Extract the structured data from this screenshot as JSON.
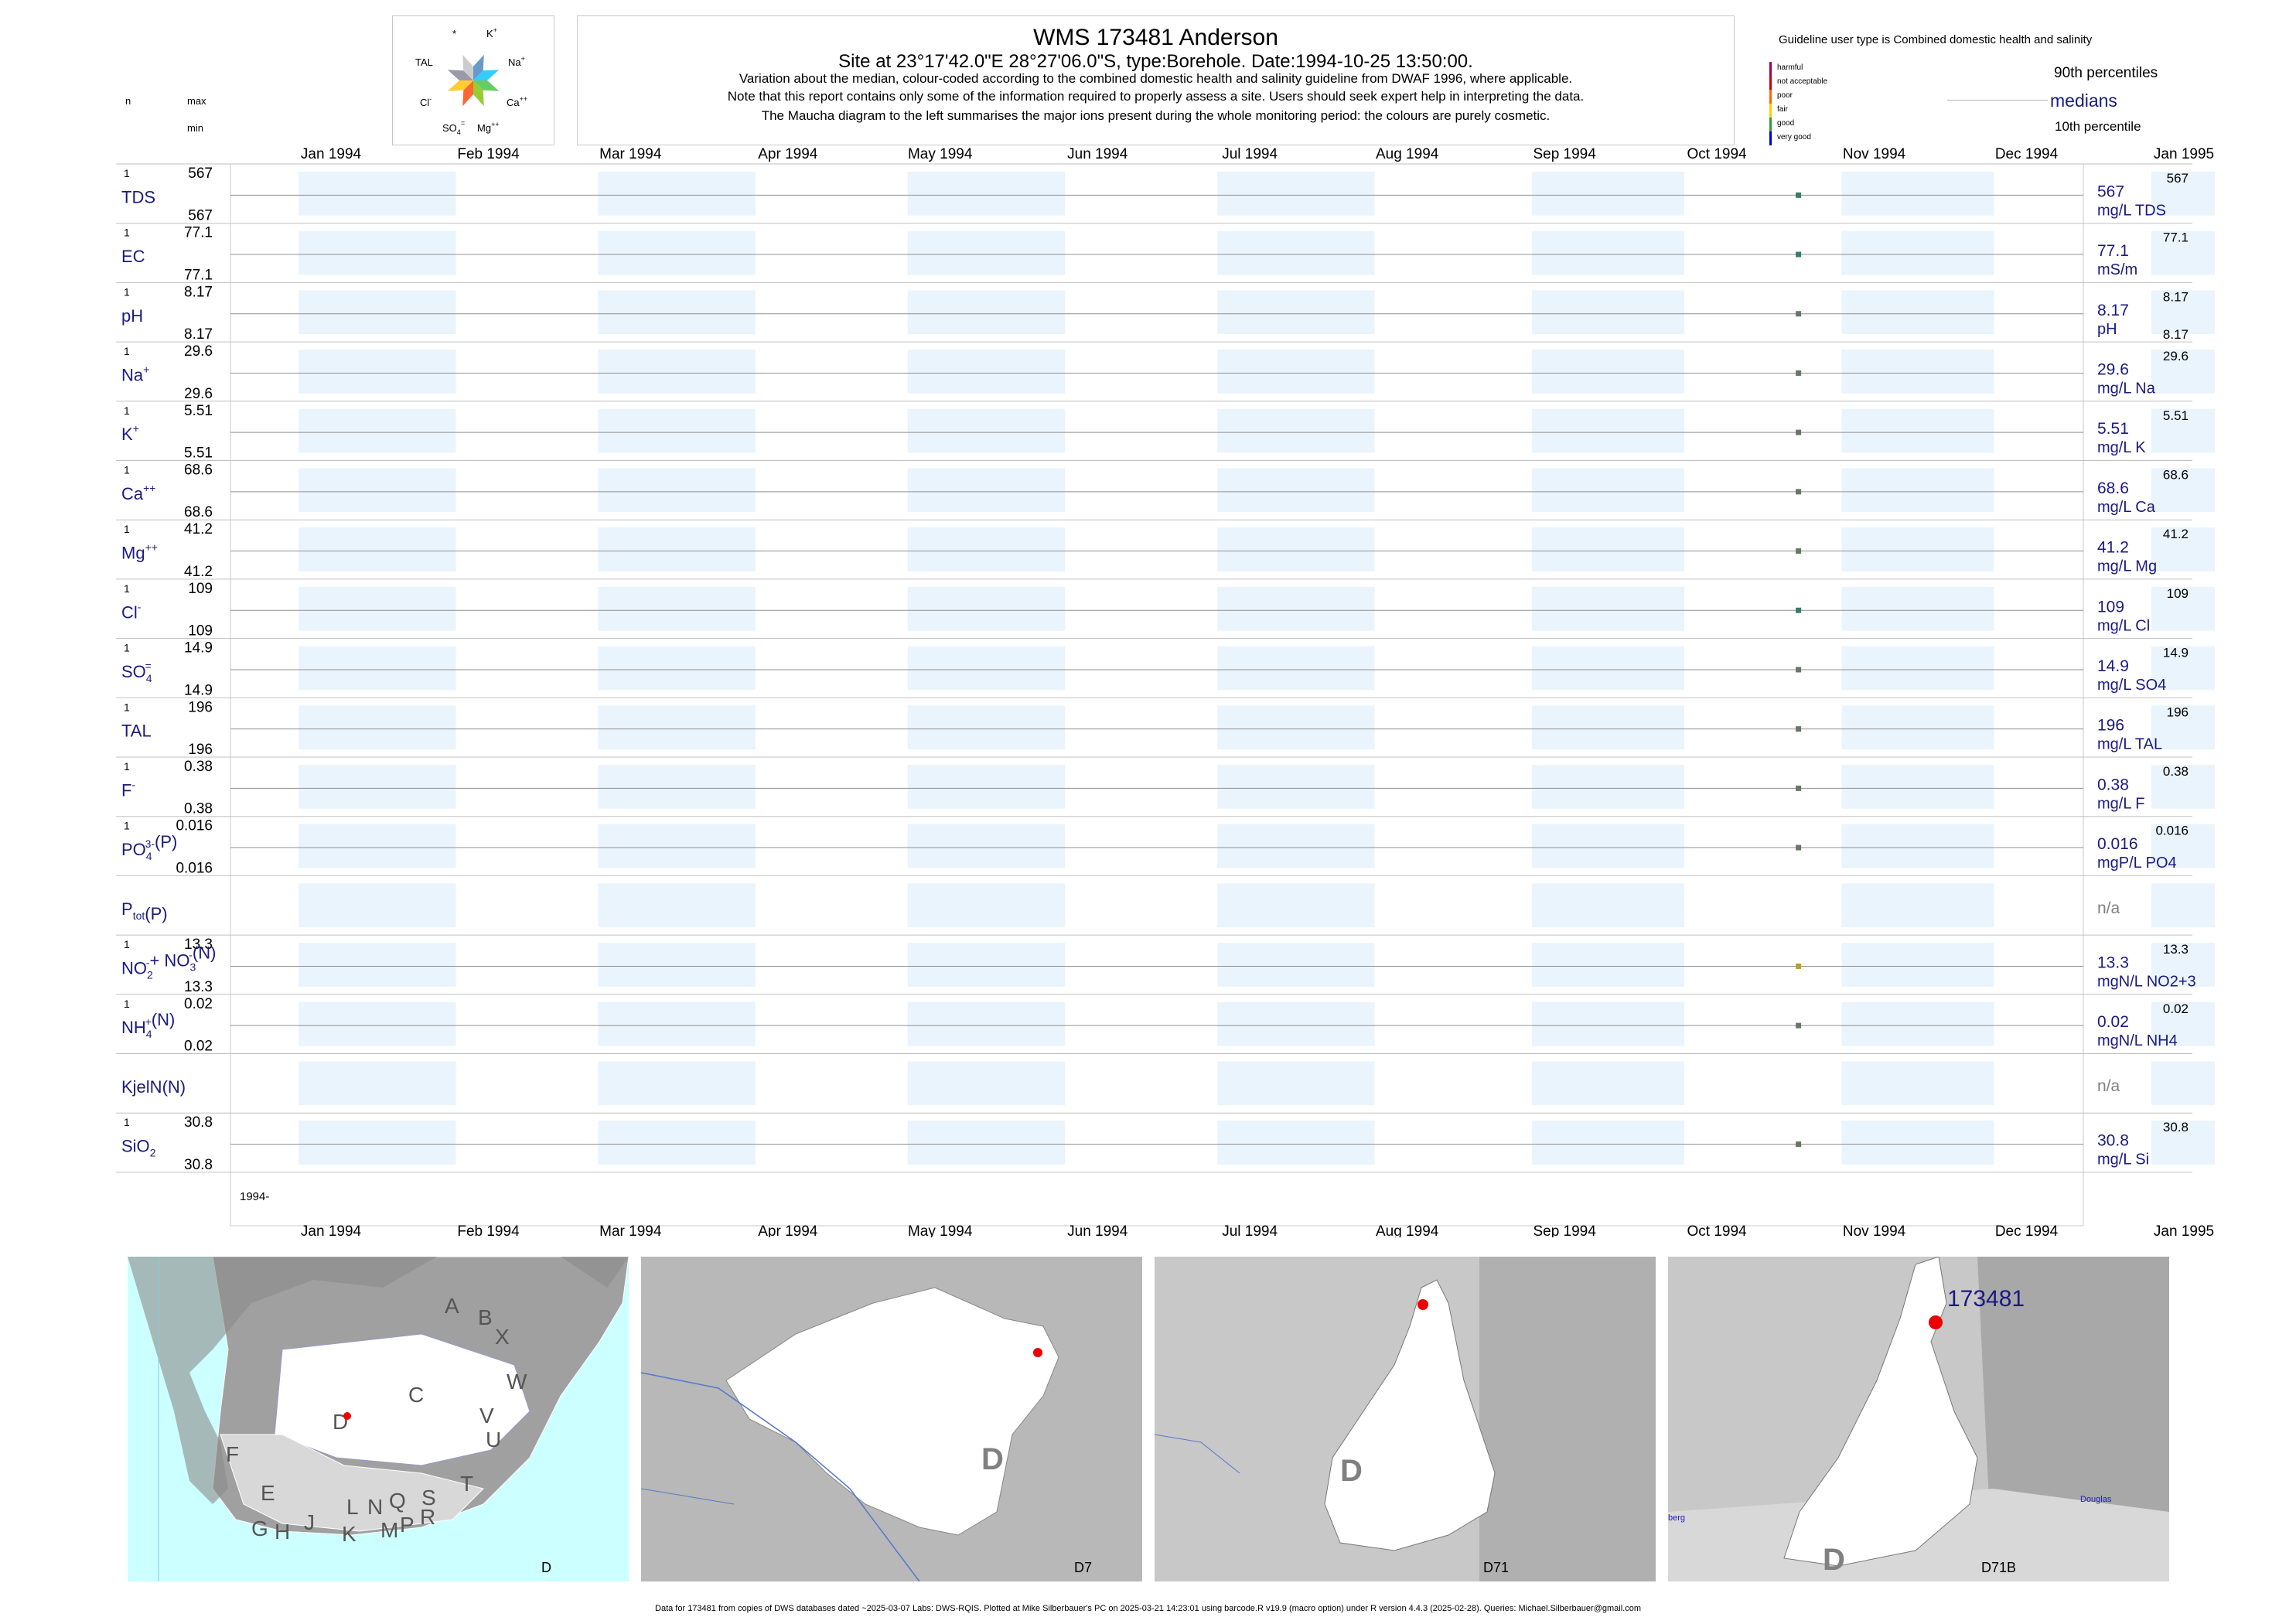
{
  "header": {
    "title": "WMS 173481  Anderson",
    "site_line": "Site at 23°17'42.0\"E 28°27'06.0\"S, type:Borehole. Date:1994-10-25 13:50:00.",
    "notes": [
      "Variation about the median,  colour-coded according to the combined domestic health and salinity guideline from DWAF 1996, where applicable.",
      "Note that this report contains only some of the information required to properly assess a site. Users should seek expert help in interpreting the data.",
      "The Maucha diagram to the left summarises the major ions present during the whole monitoring period: the colours are purely cosmetic."
    ]
  },
  "left_header": {
    "n": "n",
    "max": "max",
    "min": "min"
  },
  "maucha": {
    "labels": {
      "star": "*",
      "k": "K",
      "k_sup": "+",
      "tal": "TAL",
      "na": "Na",
      "na_sup": "+",
      "cl": "Cl",
      "cl_sup": "-",
      "ca": "Ca",
      "ca_sup": "++",
      "so4": "SO",
      "so4_sub": "4",
      "so4_sup": "=",
      "mg": "Mg",
      "mg_sup": "++"
    },
    "colors": [
      "#6699cc",
      "#33ccff",
      "#66cc66",
      "#99cc33",
      "#ff6633",
      "#ffcc33",
      "#9999aa",
      "#cccccc"
    ]
  },
  "legend": {
    "guideline_title": "Guideline user type is Combined domestic health and salinity",
    "classes": [
      {
        "label": "harmful",
        "color": "#990066"
      },
      {
        "label": "not acceptable",
        "color": "#cc0000"
      },
      {
        "label": "poor",
        "color": "#ff6600"
      },
      {
        "label": "fair",
        "color": "#ffcc00"
      },
      {
        "label": "good",
        "color": "#339933"
      },
      {
        "label": "very good",
        "color": "#0000cc"
      }
    ],
    "p90": "90th percentiles",
    "medians": "medians",
    "p10": "10th percentile"
  },
  "axis": {
    "months": [
      "Jan 1994",
      "Feb 1994",
      "Mar 1994",
      "Apr 1994",
      "May 1994",
      "Jun 1994",
      "Jul 1994",
      "Aug 1994",
      "Sep 1994",
      "Oct 1994",
      "Nov 1994",
      "Dec 1994",
      "Jan 1995"
    ],
    "year_label": "1994-"
  },
  "chart_data": {
    "type": "scatter",
    "x_range": [
      "1994-01-01",
      "1995-01-01"
    ],
    "sample_date": "1994-10-25",
    "series": [
      {
        "label": "TDS",
        "n": "1",
        "max": "567",
        "min": "567",
        "value": 567,
        "right_value": "567",
        "right_unit": "mg/L TDS",
        "p90": "567",
        "p10": "",
        "color": "#3a7a6a"
      },
      {
        "label": "EC",
        "n": "1",
        "max": "77.1",
        "min": "77.1",
        "value": 77.1,
        "right_value": "77.1",
        "right_unit": "mS/m",
        "p90": "77.1",
        "p10": "",
        "color": "#3a7a6a"
      },
      {
        "label": "pH",
        "n": "1",
        "max": "8.17",
        "min": "8.17",
        "value": 8.17,
        "right_value": "8.17",
        "right_unit": "pH",
        "p90": "8.17",
        "p10": "8.17",
        "color": "#667766"
      },
      {
        "label": "Na",
        "sup": "+",
        "n": "1",
        "max": "29.6",
        "min": "29.6",
        "value": 29.6,
        "right_value": "29.6",
        "right_unit": "mg/L Na",
        "p90": "29.6",
        "p10": "",
        "color": "#667766"
      },
      {
        "label": "K",
        "sup": "+",
        "n": "1",
        "max": "5.51",
        "min": "5.51",
        "value": 5.51,
        "right_value": "5.51",
        "right_unit": "mg/L K",
        "p90": "5.51",
        "p10": "",
        "color": "#667766"
      },
      {
        "label": "Ca",
        "sup": "++",
        "n": "1",
        "max": "68.6",
        "min": "68.6",
        "value": 68.6,
        "right_value": "68.6",
        "right_unit": "mg/L Ca",
        "p90": "68.6",
        "p10": "",
        "color": "#667766"
      },
      {
        "label": "Mg",
        "sup": "++",
        "n": "1",
        "max": "41.2",
        "min": "41.2",
        "value": 41.2,
        "right_value": "41.2",
        "right_unit": "mg/L Mg",
        "p90": "41.2",
        "p10": "",
        "color": "#667766"
      },
      {
        "label": "Cl",
        "sup": "-",
        "n": "1",
        "max": "109",
        "min": "109",
        "value": 109,
        "right_value": "109",
        "right_unit": "mg/L Cl",
        "p90": "109",
        "p10": "",
        "color": "#3a7a6a"
      },
      {
        "label": "SO",
        "sub": "4",
        "sup": "=",
        "n": "1",
        "max": "14.9",
        "min": "14.9",
        "value": 14.9,
        "right_value": "14.9",
        "right_unit": "mg/L SO4",
        "p90": "14.9",
        "p10": "",
        "color": "#667766"
      },
      {
        "label": "TAL",
        "n": "1",
        "max": "196",
        "min": "196",
        "value": 196,
        "right_value": "196",
        "right_unit": "mg/L TAL",
        "p90": "196",
        "p10": "",
        "color": "#667766"
      },
      {
        "label": "F",
        "sup": "-",
        "n": "1",
        "max": "0.38",
        "min": "0.38",
        "value": 0.38,
        "right_value": "0.38",
        "right_unit": "mg/L F",
        "p90": "0.38",
        "p10": "",
        "color": "#667766"
      },
      {
        "label": "PO",
        "sub": "4",
        "sup": "3-",
        "tail": "(P)",
        "n": "1",
        "max": "0.016",
        "min": "0.016",
        "value": 0.016,
        "right_value": "0.016",
        "right_unit": "mgP/L PO4",
        "p90": "0.016",
        "p10": "",
        "color": "#667766"
      },
      {
        "label": "P",
        "sub": "tot",
        "tail": "(P)",
        "n": "",
        "max": "",
        "min": "",
        "value": null,
        "right_value": "n/a",
        "right_unit": "",
        "p90": "",
        "p10": "",
        "color": "#808080"
      },
      {
        "label": "NO",
        "sub": "2",
        "sup": "-",
        "tail": "+ NO",
        "sub2": "3",
        "sup2": "-",
        "tail2": "(N)",
        "n": "1",
        "max": "13.3",
        "min": "13.3",
        "value": 13.3,
        "right_value": "13.3",
        "right_unit": "mgN/L NO2+3",
        "p90": "13.3",
        "p10": "",
        "color": "#b8a030"
      },
      {
        "label": "NH",
        "sub": "4",
        "sup": "+",
        "tail": "(N)",
        "n": "1",
        "max": "0.02",
        "min": "0.02",
        "value": 0.02,
        "right_value": "0.02",
        "right_unit": "mgN/L NH4",
        "p90": "0.02",
        "p10": "",
        "color": "#667766"
      },
      {
        "label": "KjelN(N)",
        "n": "",
        "max": "",
        "min": "",
        "value": null,
        "right_value": "n/a",
        "right_unit": "",
        "p90": "",
        "p10": "",
        "color": "#808080"
      },
      {
        "label": "SiO",
        "sub": "2",
        "n": "1",
        "max": "30.8",
        "min": "30.8",
        "value": 30.8,
        "right_value": "30.8",
        "right_unit": "mg/L Si",
        "p90": "30.8",
        "p10": "",
        "color": "#667766"
      }
    ]
  },
  "maps": [
    {
      "caption": "D",
      "letters": [
        "A",
        "B",
        "X",
        "W",
        "C",
        "V",
        "U",
        "T",
        "D",
        "F",
        "E",
        "G",
        "H",
        "J",
        "K",
        "L",
        "M",
        "N",
        "P",
        "Q",
        "R",
        "S"
      ]
    },
    {
      "caption": "D7",
      "letters": [
        "D"
      ]
    },
    {
      "caption": "D71",
      "letters": [
        "D"
      ]
    },
    {
      "caption": "D71B",
      "letters": [
        "D"
      ],
      "site_label": "173481",
      "place1": "Douglas",
      "place2": "berg"
    }
  ],
  "footer": "Data for 173481 from copies of DWS databases dated ~2025-03-07 Labs: DWS-RQIS. Plotted at Mike Silberbauer's PC on 2025-03-21 14:23:01 using barcode.R v19.9 (macro option) under R version 4.4.3 (2025-02-28). Queries: Michael.Silberbauer@gmail.com"
}
